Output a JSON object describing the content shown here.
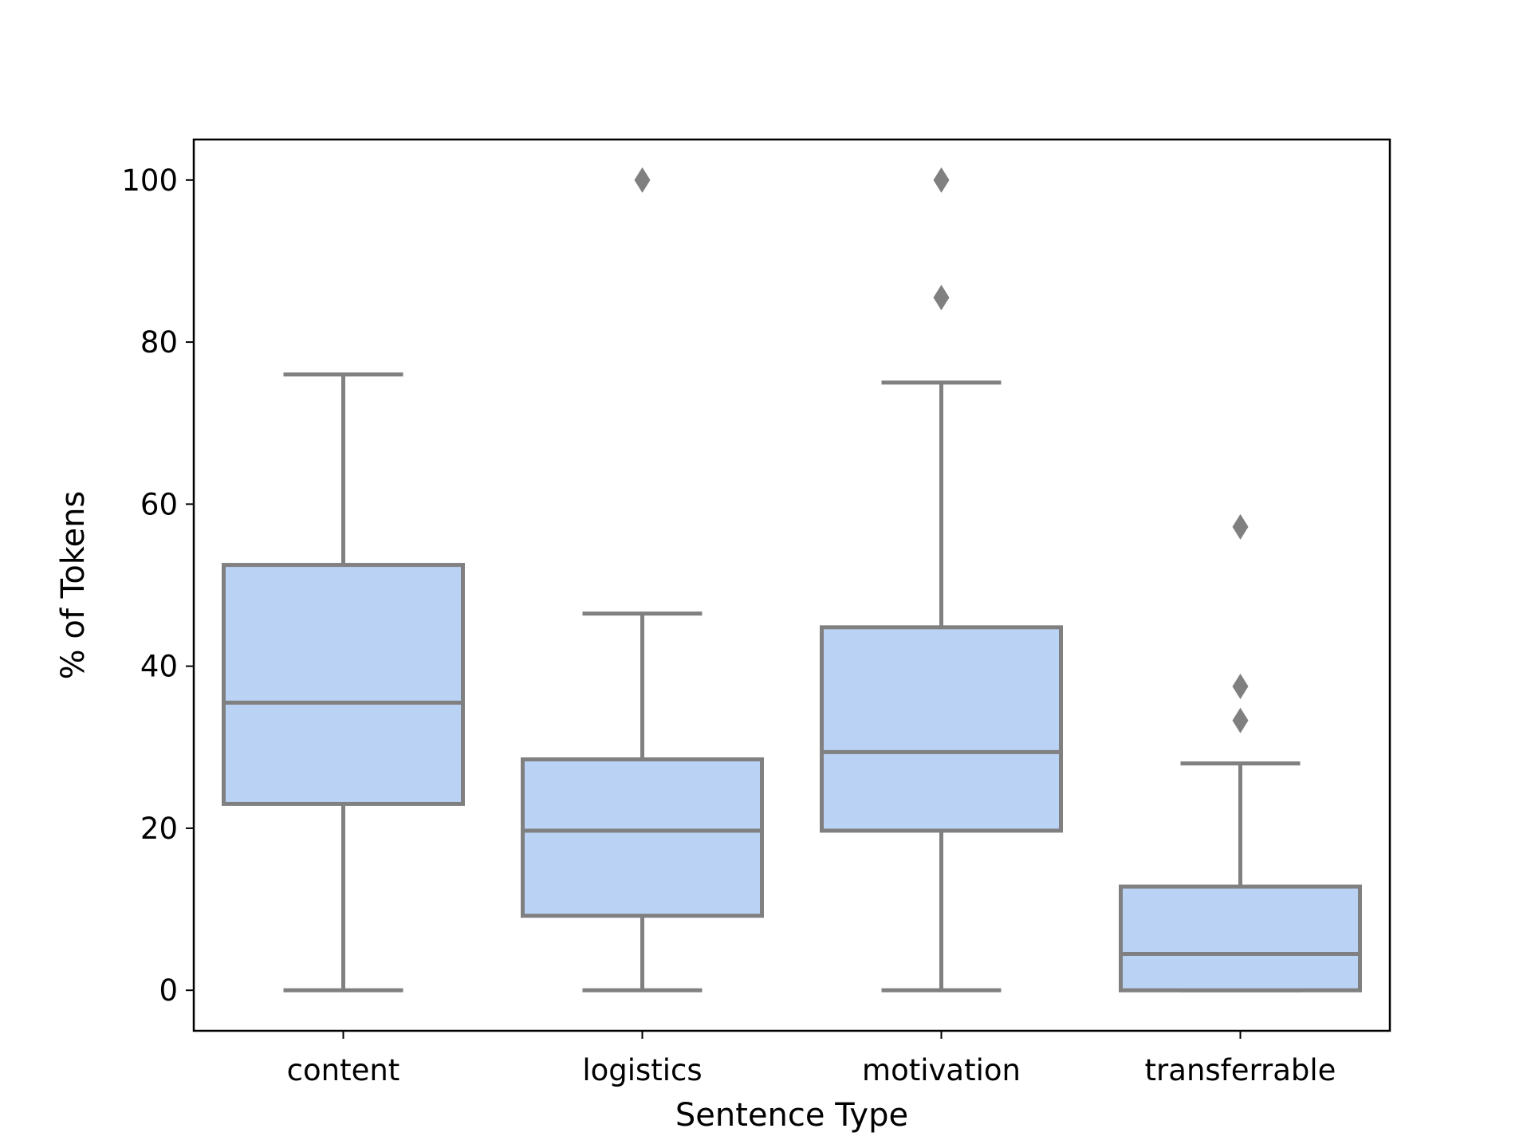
{
  "chart_data": {
    "type": "box",
    "xlabel": "Sentence Type",
    "ylabel": "% of Tokens",
    "categories": [
      "content",
      "logistics",
      "motivation",
      "transferrable"
    ],
    "boxes": [
      {
        "category": "content",
        "whisker_low": 0,
        "q1": 23,
        "median": 35.5,
        "q3": 52.5,
        "whisker_high": 76,
        "outliers": []
      },
      {
        "category": "logistics",
        "whisker_low": 0,
        "q1": 9.2,
        "median": 19.7,
        "q3": 28.5,
        "whisker_high": 46.5,
        "outliers": [
          100
        ]
      },
      {
        "category": "motivation",
        "whisker_low": 0,
        "q1": 19.7,
        "median": 29.4,
        "q3": 44.8,
        "whisker_high": 75,
        "outliers": [
          85.5,
          100
        ]
      },
      {
        "category": "transferrable",
        "whisker_low": 0,
        "q1": 0,
        "median": 4.5,
        "q3": 12.8,
        "whisker_high": 28,
        "outliers": [
          33.3,
          37.5,
          57.2
        ]
      }
    ],
    "yticks": [
      0,
      20,
      40,
      60,
      80,
      100
    ],
    "ytick_labels": [
      "0",
      "20",
      "40",
      "60",
      "80",
      "100"
    ],
    "ylim": [
      -5,
      105
    ],
    "grid": false,
    "colors": {
      "box_fill": "#bad2f3",
      "line": "#808080",
      "outlier": "#808080",
      "axis": "#000000"
    }
  }
}
